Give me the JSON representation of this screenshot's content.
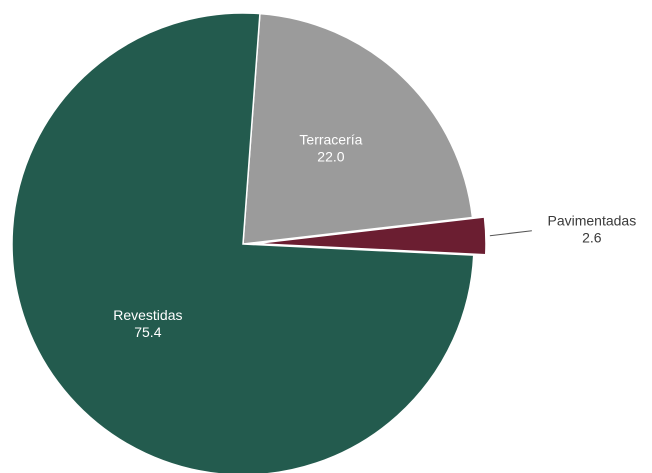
{
  "chart_data": {
    "type": "pie",
    "slices": [
      {
        "label": "Terracería",
        "value": 22.0,
        "value_text": "22.0",
        "color": "#9b9b9b",
        "text_color": "#ffffff",
        "explode": false
      },
      {
        "label": "Pavimentadas",
        "value": 2.6,
        "value_text": "2.6",
        "color": "#6b1e31",
        "text_color": "#3a3a3a",
        "explode": true,
        "label_outside": true
      },
      {
        "label": "Revestidas",
        "value": 75.4,
        "value_text": "75.4",
        "color": "#235b4e",
        "text_color": "#ffffff",
        "explode": false
      }
    ],
    "start_angle_deg": 4.2,
    "direction": "clockwise",
    "legend": "none",
    "title": ""
  }
}
